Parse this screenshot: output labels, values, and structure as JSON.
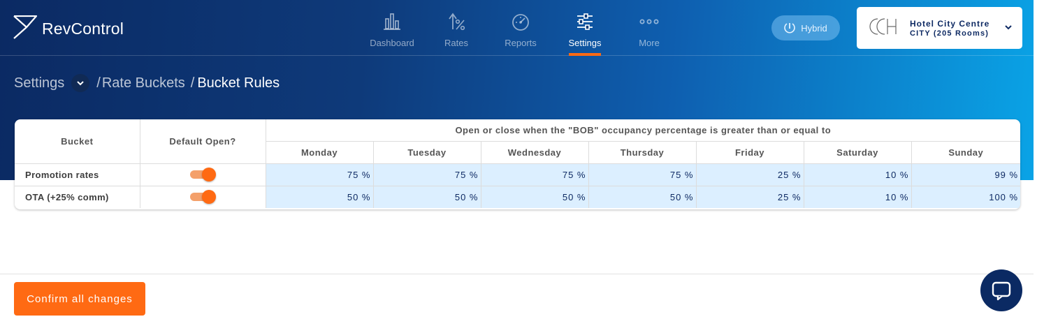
{
  "header": {
    "brand": "RevControl",
    "nav": [
      {
        "label": "Dashboard",
        "icon": "bar-chart-icon",
        "active": false
      },
      {
        "label": "Rates",
        "icon": "rates-percent-icon",
        "active": false
      },
      {
        "label": "Reports",
        "icon": "gauge-icon",
        "active": false
      },
      {
        "label": "Settings",
        "icon": "sliders-icon",
        "active": true
      },
      {
        "label": "More",
        "icon": "more-dots-icon",
        "active": false
      }
    ],
    "mode_label": "Hybrid",
    "hotel": {
      "name": "Hotel City Centre",
      "sub": "CITY (205 Rooms)",
      "logo": "CCH"
    }
  },
  "breadcrumb": {
    "root": "Settings",
    "middle": "Rate Buckets",
    "current": "Bucket Rules",
    "separator": "/"
  },
  "table": {
    "col_bucket": "Bucket",
    "col_default": "Default Open?",
    "group_header": "Open or close when the \"BOB\" occupancy percentage is greater than or equal to",
    "days": [
      "Monday",
      "Tuesday",
      "Wednesday",
      "Thursday",
      "Friday",
      "Saturday",
      "Sunday"
    ],
    "rows": [
      {
        "name": "Promotion rates",
        "default_open": true,
        "values": [
          "75 %",
          "75 %",
          "75 %",
          "75 %",
          "25 %",
          "10 %",
          "99 %"
        ]
      },
      {
        "name": "OTA (+25% comm)",
        "default_open": true,
        "values": [
          "50 %",
          "50 %",
          "50 %",
          "50 %",
          "25 %",
          "10 %",
          "100 %"
        ]
      }
    ]
  },
  "footer": {
    "confirm_label": "Confirm all changes"
  },
  "colors": {
    "accent": "#ff6a13",
    "navy": "#0b2a63",
    "cell_bg": "#dcefff"
  }
}
